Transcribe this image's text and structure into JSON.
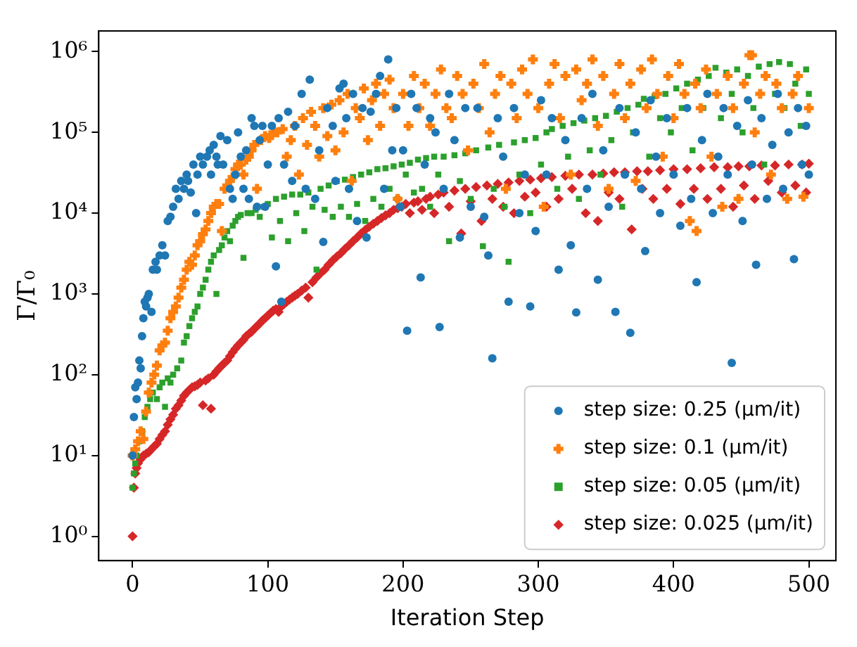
{
  "chart_data": {
    "type": "scatter",
    "xlabel": "Iteration Step",
    "ylabel": "Γ/Γ₀",
    "log": "y",
    "grid": false,
    "legend": "bottom right",
    "xlim": [
      -25,
      520
    ],
    "xticks": [
      0,
      100,
      200,
      300,
      400,
      500
    ],
    "ylim": [
      0.5,
      1800000
    ],
    "yticks": [
      {
        "value": 1,
        "label": "10⁰"
      },
      {
        "value": 10,
        "label": "10¹"
      },
      {
        "value": 100,
        "label": "10²"
      },
      {
        "value": 1000,
        "label": "10³"
      },
      {
        "value": 10000,
        "label": "10⁴"
      },
      {
        "value": 100000,
        "label": "10⁵"
      },
      {
        "value": 1000000,
        "label": "10⁶"
      }
    ],
    "series": [
      {
        "name": "step size: 0.25 (μm/it)",
        "color": "#1f77b4",
        "marker": "circle",
        "x": [
          0,
          1,
          2,
          3,
          4,
          5,
          6,
          7,
          8,
          9,
          10,
          11,
          12,
          14,
          15,
          17,
          18,
          20,
          22,
          24,
          26,
          28,
          30,
          32,
          34,
          36,
          38,
          40,
          41,
          43,
          45,
          47,
          48,
          50,
          52,
          55,
          57,
          58,
          60,
          62,
          63,
          65,
          67,
          70,
          72,
          74,
          76,
          78,
          80,
          82,
          84,
          86,
          88,
          90,
          92,
          94,
          96,
          98,
          100,
          103,
          106,
          108,
          110,
          112,
          115,
          118,
          120,
          125,
          128,
          131,
          135,
          138,
          141,
          144,
          148,
          150,
          153,
          156,
          158,
          160,
          163,
          166,
          170,
          173,
          176,
          180,
          183,
          186,
          189,
          192,
          195,
          198,
          200,
          203,
          206,
          210,
          213,
          216,
          220,
          224,
          227,
          230,
          234,
          238,
          242,
          246,
          250,
          255,
          260,
          263,
          266,
          270,
          274,
          278,
          282,
          286,
          290,
          294,
          298,
          302,
          306,
          310,
          315,
          320,
          324,
          328,
          332,
          336,
          340,
          344,
          348,
          352,
          357,
          360,
          364,
          368,
          372,
          376,
          379,
          383,
          387,
          390,
          395,
          400,
          405,
          410,
          413,
          417,
          421,
          425,
          429,
          433,
          437,
          440,
          443,
          447,
          451,
          455,
          458,
          461,
          465,
          469,
          473,
          477,
          481,
          485,
          489,
          492,
          495,
          498,
          500
        ],
        "values": [
          10,
          30,
          70,
          50,
          80,
          150,
          120,
          300,
          500,
          800,
          700,
          900,
          1000,
          600,
          2000,
          2500,
          2000,
          3000,
          4000,
          3000,
          8000,
          9000,
          12000,
          20000,
          15000,
          25000,
          20000,
          30000,
          25000,
          18000,
          40000,
          10000,
          30000,
          50000,
          40000,
          50000,
          60000,
          30000,
          70000,
          50000,
          40000,
          90000,
          40000,
          80000,
          20000,
          15000,
          30000,
          100000,
          50000,
          20000,
          60000,
          15000,
          150000,
          120000,
          12000,
          80000,
          120000,
          12000,
          40000,
          120000,
          2200,
          150000,
          800,
          40000,
          180000,
          25000,
          120000,
          300000,
          20000,
          450000,
          15000,
          60000,
          4400,
          200000,
          120000,
          25000,
          350000,
          400000,
          150000,
          20000,
          300000,
          8000,
          200000,
          5000,
          180000,
          300000,
          500000,
          20000,
          800000,
          60000,
          200000,
          12000,
          60000,
          350,
          300000,
          200000,
          1600,
          40000,
          150000,
          100000,
          390,
          20000,
          300000,
          80000,
          5000,
          200000,
          12000,
          200000,
          9000,
          3000,
          160,
          150000,
          50000,
          800,
          200000,
          10000,
          30000,
          700,
          6000,
          250000,
          30000,
          150000,
          2000,
          80000,
          4000,
          590,
          150000,
          20000,
          300000,
          1500,
          60000,
          12000,
          600,
          200000,
          30000,
          330,
          100000,
          20000,
          3400,
          250000,
          50000,
          10000,
          150000,
          30000,
          7000,
          200000,
          15000,
          1400,
          80000,
          300000,
          10000,
          50000,
          200000,
          30000,
          140,
          120000,
          8000,
          250000,
          40000,
          2300,
          150000,
          15000,
          70000,
          300000,
          20000,
          100000,
          2700,
          200000,
          40000,
          120000,
          30000
        ]
      },
      {
        "name": "step size: 0.1 (μm/it)",
        "color": "#ff7f0e",
        "marker": "cross",
        "x": [
          0,
          2,
          4,
          6,
          8,
          10,
          12,
          14,
          16,
          18,
          20,
          22,
          24,
          26,
          28,
          30,
          32,
          34,
          36,
          38,
          40,
          42,
          44,
          46,
          48,
          50,
          52,
          54,
          56,
          58,
          60,
          62,
          64,
          66,
          68,
          70,
          72,
          74,
          76,
          78,
          80,
          82,
          84,
          86,
          88,
          90,
          92,
          95,
          98,
          101,
          104,
          107,
          111,
          114,
          117,
          120,
          123,
          126,
          129,
          132,
          135,
          138,
          141,
          144,
          147,
          150,
          153,
          156,
          159,
          162,
          165,
          168,
          171,
          174,
          177,
          180,
          183,
          186,
          190,
          193,
          196,
          200,
          204,
          208,
          212,
          216,
          220,
          224,
          228,
          232,
          236,
          240,
          244,
          248,
          252,
          256,
          260,
          264,
          268,
          272,
          276,
          280,
          284,
          288,
          292,
          296,
          300,
          304,
          308,
          312,
          316,
          320,
          324,
          328,
          332,
          336,
          340,
          344,
          348,
          352,
          356,
          360,
          364,
          368,
          372,
          376,
          380,
          384,
          388,
          392,
          396,
          400,
          404,
          408,
          412,
          416,
          417,
          420,
          424,
          428,
          432,
          436,
          440,
          444,
          448,
          452,
          456,
          458,
          460,
          464,
          468,
          472,
          476,
          480,
          484,
          488,
          492,
          496,
          500
        ],
        "values": [
          10,
          12,
          15,
          20,
          16,
          35,
          60,
          80,
          100,
          130,
          200,
          230,
          250,
          350,
          500,
          600,
          700,
          900,
          1200,
          1500,
          2000,
          2500,
          2300,
          3000,
          4000,
          4500,
          5500,
          6300,
          8000,
          10000,
          12000,
          13000,
          13000,
          6000,
          20000,
          22000,
          25000,
          28000,
          35000,
          40000,
          40000,
          30000,
          46000,
          50000,
          60000,
          70000,
          20000,
          80000,
          90000,
          85000,
          100000,
          100000,
          110000,
          50000,
          80000,
          120000,
          30000,
          150000,
          70000,
          180000,
          120000,
          50000,
          200000,
          90000,
          220000,
          60000,
          250000,
          100000,
          300000,
          25000,
          200000,
          150000,
          350000,
          80000,
          250000,
          400000,
          120000,
          300000,
          450000,
          200000,
          15000,
          300000,
          120000,
          500000,
          200000,
          400000,
          120000,
          300000,
          600000,
          200000,
          150000,
          500000,
          300000,
          60000,
          400000,
          200000,
          700000,
          100000,
          300000,
          500000,
          20000,
          400000,
          150000,
          600000,
          300000,
          800000,
          200000,
          12000,
          400000,
          700000,
          150000,
          500000,
          30000,
          600000,
          250000,
          400000,
          800000,
          120000,
          500000,
          20000,
          300000,
          700000,
          150000,
          400000,
          25000,
          600000,
          200000,
          800000,
          300000,
          50000,
          500000,
          150000,
          700000,
          300000,
          8000,
          400000,
          6000,
          200000,
          600000,
          50000,
          300000,
          12000,
          500000,
          200000,
          15000,
          400000,
          900000,
          900000,
          100000,
          300000,
          500000,
          30000,
          400000,
          200000,
          15000,
          300000,
          500000,
          16000,
          200000
        ]
      },
      {
        "name": "step size: 0.05 (μm/it)",
        "color": "#2ca02c",
        "marker": "square",
        "x": [
          0,
          1,
          2,
          3,
          5,
          7,
          9,
          11,
          13,
          15,
          18,
          20,
          22,
          24,
          26,
          28,
          30,
          33,
          36,
          38,
          40,
          42,
          44,
          46,
          48,
          50,
          52,
          54,
          56,
          58,
          60,
          62,
          64,
          66,
          68,
          70,
          72,
          74,
          76,
          78,
          80,
          82,
          85,
          88,
          91,
          94,
          97,
          100,
          103,
          106,
          109,
          112,
          115,
          118,
          121,
          124,
          127,
          130,
          133,
          136,
          139,
          142,
          145,
          148,
          151,
          154,
          157,
          160,
          163,
          166,
          169,
          172,
          175,
          178,
          181,
          184,
          187,
          190,
          193,
          196,
          199,
          202,
          205,
          208,
          211,
          214,
          217,
          220,
          223,
          226,
          230,
          234,
          238,
          242,
          246,
          250,
          254,
          259,
          263,
          267,
          271,
          275,
          278,
          282,
          286,
          290,
          294,
          298,
          302,
          306,
          310,
          314,
          318,
          322,
          326,
          330,
          334,
          338,
          342,
          346,
          350,
          354,
          358,
          362,
          366,
          370,
          374,
          378,
          382,
          386,
          390,
          394,
          398,
          402,
          406,
          410,
          414,
          418,
          422,
          426,
          431,
          435,
          439,
          443,
          447,
          451,
          455,
          459,
          463,
          467,
          471,
          475,
          478,
          482,
          486,
          490,
          494,
          498,
          500
        ],
        "values": [
          4,
          6,
          8,
          10,
          15,
          20,
          30,
          40,
          50,
          60,
          50,
          70,
          80,
          40,
          90,
          80,
          100,
          120,
          150,
          250,
          300,
          400,
          500,
          600,
          700,
          1000,
          1200,
          1500,
          2000,
          2500,
          3000,
          1000,
          3500,
          4000,
          5000,
          6000,
          4500,
          7000,
          8000,
          9000,
          9500,
          2800,
          10000,
          10000,
          11000,
          9000,
          12000,
          13000,
          5000,
          15000,
          8000,
          16000,
          4500,
          17000,
          10000,
          17000,
          6000,
          18000,
          12000,
          2000,
          20000,
          11000,
          22000,
          9000,
          25000,
          12000,
          26000,
          9000,
          28000,
          13000,
          30000,
          8000,
          32000,
          15000,
          35000,
          12000,
          36000,
          20000,
          38000,
          15000,
          40000,
          30000,
          42000,
          18000,
          46000,
          20000,
          48000,
          12000,
          50000,
          30000,
          50000,
          4500,
          52000,
          25000,
          55000,
          15000,
          60000,
          3900,
          65000,
          20000,
          70000,
          12000,
          2500,
          75000,
          30000,
          80000,
          10000,
          85000,
          40000,
          100000,
          110000,
          20000,
          120000,
          50000,
          130000,
          15000,
          140000,
          60000,
          150000,
          30000,
          160000,
          80000,
          180000,
          12000,
          200000,
          100000,
          220000,
          260000,
          50000,
          280000,
          150000,
          300000,
          100000,
          350000,
          200000,
          400000,
          60000,
          450000,
          200000,
          500000,
          630000,
          150000,
          550000,
          300000,
          600000,
          100000,
          500000,
          200000,
          650000,
          40000,
          700000,
          300000,
          740000,
          200000,
          700000,
          400000,
          120000,
          600000,
          300000
        ]
      },
      {
        "name": "step size: 0.025 (μm/it)",
        "color": "#d62728",
        "marker": "diamond",
        "x": [
          0,
          1,
          2,
          3,
          4,
          6,
          8,
          10,
          12,
          14,
          16,
          18,
          20,
          22,
          24,
          26,
          28,
          30,
          32,
          34,
          36,
          38,
          40,
          42,
          44,
          46,
          48,
          50,
          52,
          54,
          56,
          58,
          60,
          62,
          64,
          66,
          68,
          70,
          72,
          74,
          76,
          78,
          80,
          82,
          84,
          86,
          88,
          90,
          92,
          94,
          96,
          98,
          100,
          102,
          104,
          106,
          108,
          110,
          112,
          114,
          116,
          118,
          120,
          122,
          125,
          128,
          130,
          133,
          136,
          139,
          142,
          145,
          148,
          151,
          154,
          157,
          160,
          163,
          166,
          169,
          172,
          175,
          178,
          181,
          184,
          187,
          190,
          193,
          196,
          199,
          202,
          205,
          208,
          211,
          214,
          217,
          220,
          223,
          226,
          230,
          234,
          238,
          243,
          246,
          250,
          254,
          258,
          262,
          266,
          270,
          274,
          278,
          282,
          286,
          290,
          294,
          298,
          302,
          306,
          310,
          315,
          320,
          325,
          330,
          335,
          340,
          344,
          348,
          352,
          356,
          360,
          364,
          369,
          373,
          377,
          381,
          385,
          390,
          395,
          400,
          405,
          410,
          415,
          420,
          425,
          430,
          435,
          440,
          444,
          448,
          452,
          456,
          460,
          465,
          470,
          475,
          480,
          485,
          490,
          495,
          498,
          500
        ],
        "values": [
          1,
          4,
          6,
          7,
          8,
          9,
          10,
          10.5,
          11,
          12,
          13,
          14,
          16,
          18,
          20,
          24,
          28,
          32,
          38,
          42,
          48,
          55,
          60,
          65,
          70,
          72,
          75,
          80,
          42,
          85,
          90,
          38,
          100,
          110,
          120,
          130,
          140,
          150,
          170,
          190,
          210,
          230,
          250,
          270,
          300,
          320,
          340,
          370,
          400,
          430,
          470,
          500,
          540,
          580,
          620,
          650,
          600,
          700,
          750,
          800,
          850,
          900,
          950,
          1000,
          1100,
          1200,
          900,
          1400,
          1600,
          1800,
          2000,
          2300,
          2600,
          2900,
          3200,
          3600,
          4000,
          4500,
          5000,
          5600,
          6200,
          6800,
          7400,
          8000,
          8700,
          9400,
          10000,
          11000,
          11500,
          12000,
          13000,
          10000,
          13500,
          14000,
          11000,
          15000,
          16000,
          10000,
          17000,
          18000,
          12000,
          19000,
          5600,
          20000,
          14000,
          21000,
          8000,
          22000,
          15000,
          23000,
          12000,
          24000,
          10000,
          25000,
          16000,
          26000,
          18000,
          27000,
          12000,
          28000,
          15000,
          29000,
          20000,
          30000,
          10000,
          30000,
          8000,
          31000,
          18000,
          32000,
          15000,
          32000,
          6300,
          33000,
          20000,
          33000,
          15000,
          34000,
          20000,
          35000,
          13000,
          35000,
          20000,
          36000,
          15000,
          37000,
          20000,
          37000,
          12000,
          38000,
          22000,
          38000,
          15000,
          39000,
          25000,
          39000,
          18000,
          40000,
          22000,
          40000,
          18000,
          41000
        ]
      }
    ]
  }
}
